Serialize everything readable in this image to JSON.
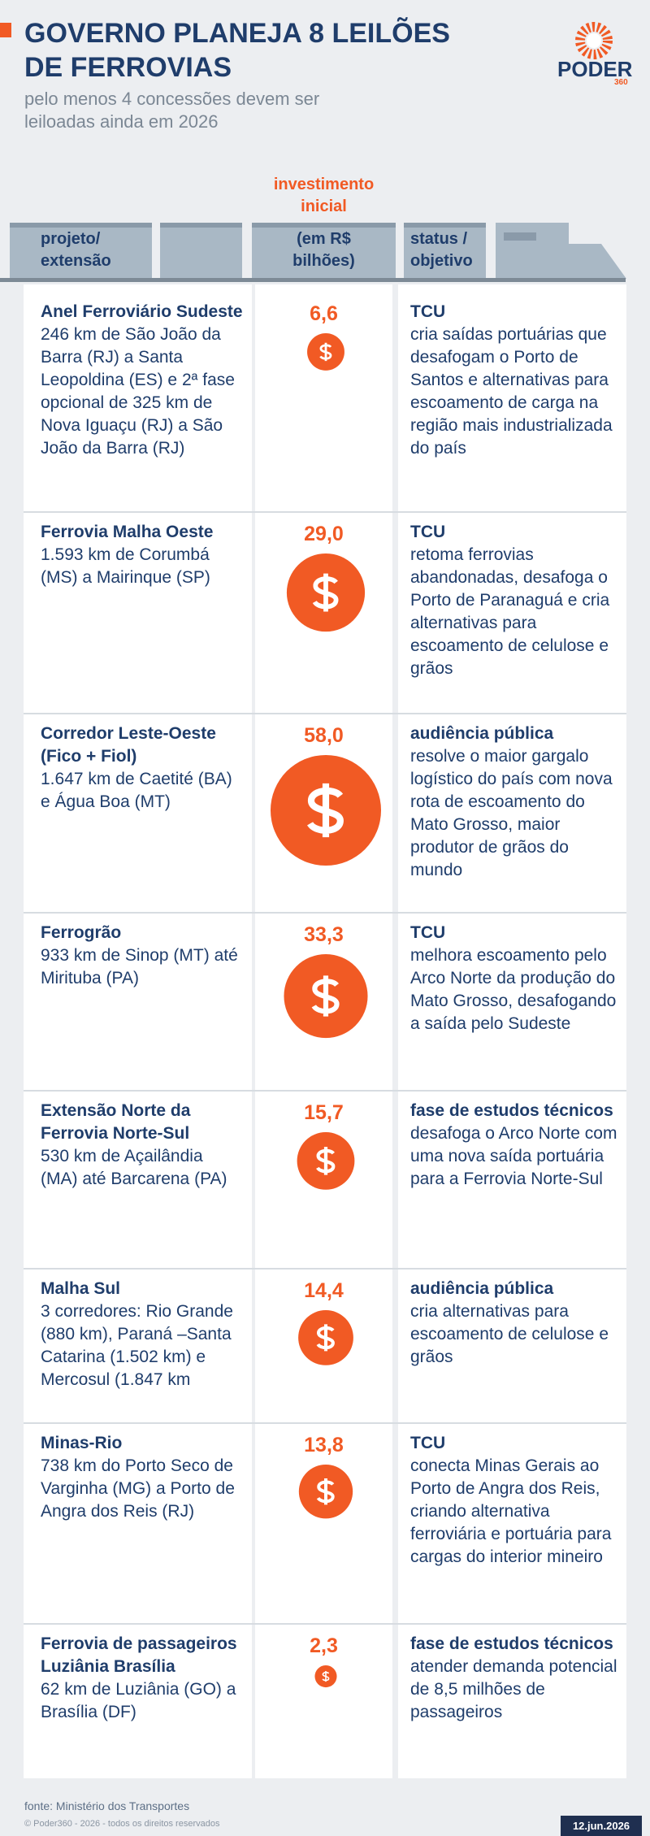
{
  "header": {
    "title": "GOVERNO PLANEJA 8 LEILÕES DE FERROVIAS",
    "subtitle": "pelo menos 4 concessões devem ser leiloadas ainda em 2026",
    "logo": {
      "name": "PODER",
      "number": "360"
    }
  },
  "table": {
    "headers": {
      "project": [
        "projeto/",
        "extensão"
      ],
      "investment_title": [
        "investimento",
        "inicial"
      ],
      "investment_unit": [
        "(em R$",
        "bilhões)"
      ],
      "status": [
        "status /",
        "objetivo"
      ]
    },
    "rows": [
      {
        "name": "Anel Ferroviário Sudeste",
        "extension": "246 km de São João da Barra (RJ) a Santa Leopoldina (ES) e 2ª fase opcional de 325 km de Nova Iguaçu (RJ) a São João da Barra (RJ)",
        "investment": {
          "value": 6.6,
          "label": "6,6"
        },
        "status": "TCU",
        "objective": "cria saídas portuárias que desafogam o Porto de Santos e alternativas para escoamento de carga na região mais industrializada do país"
      },
      {
        "name": "Ferrovia Malha Oeste",
        "extension": "1.593 km de Corumbá (MS) a Mairinque (SP)",
        "investment": {
          "value": 29.0,
          "label": "29,0"
        },
        "status": "TCU",
        "objective": "retoma ferrovias abandonadas, desafoga o Porto de Paranaguá e cria alternativas para escoamento de celulose e grãos"
      },
      {
        "name": "Corredor Leste-Oeste (Fico + Fiol)",
        "extension": "1.647 km de Caetité (BA) e Água Boa (MT)",
        "investment": {
          "value": 58.0,
          "label": "58,0"
        },
        "status": "audiência pública",
        "objective": "resolve o maior gargalo logístico do país com nova rota de escoamento do Mato Grosso, maior produtor de grãos do mundo"
      },
      {
        "name": "Ferrogrão",
        "extension": "933 km de Sinop (MT) até Miritubа (PA)",
        "investment": {
          "value": 33.3,
          "label": "33,3"
        },
        "status": "TCU",
        "objective": "melhora escoamento pelo Arco Norte da produção do Mato Grosso, desafogando a saída pelo Sudeste"
      },
      {
        "name": "Extensão Norte da Ferrovia Norte-Sul",
        "extension": "530 km de Açailândia (MA) até Barcarena (PA)",
        "investment": {
          "value": 15.7,
          "label": "15,7"
        },
        "status": "fase de estudos técnicos",
        "objective": "desafoga o Arco Norte com uma nova saída portuária para a Ferrovia Norte-Sul"
      },
      {
        "name": "Malha Sul",
        "extension": "3 corredores: Rio Grande (880 km), Paraná –Santa Catarina (1.502 km) e Mercosul (1.847 km",
        "investment": {
          "value": 14.4,
          "label": "14,4"
        },
        "status": "audiência pública",
        "objective": "cria alternativas para escoamento de celulose e grãos"
      },
      {
        "name": "Minas-Rio",
        "extension": "738 km do Porto Seco de Varginha (MG) a Porto de Angra dos Reis (RJ)",
        "investment": {
          "value": 13.8,
          "label": "13,8"
        },
        "status": "TCU",
        "objective": "conecta Minas Gerais ao Porto de Angra dos Reis, criando alternativa ferroviária e portuária para cargas do interior mineiro"
      },
      {
        "name": "Ferrovia de passageiros Luziânia Brasília",
        "extension": "62 km de Luziânia (GO) a Brasília (DF)",
        "investment": {
          "value": 2.3,
          "label": "2,3"
        },
        "status": "fase de estudos técnicos",
        "objective": "atender demanda potencial de 8,5 milhões de passageiros"
      }
    ]
  },
  "footer": {
    "source": "fonte: Ministério dos Transportes",
    "copyright": "© Poder360 - 2026 - todos os direitos reservados",
    "date": "12.jun.2026"
  }
}
